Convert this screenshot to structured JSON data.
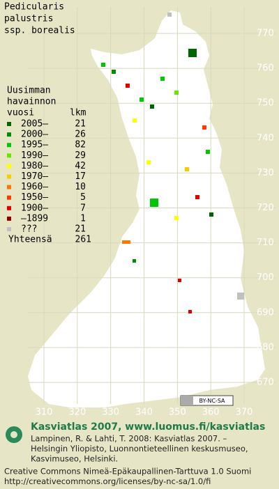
{
  "title": [
    "Pedicularis",
    "palustris",
    "ssp. borealis"
  ],
  "legend": {
    "header": [
      "Uusimman",
      "havainnon",
      "vuosi"
    ],
    "count_header": "lkm",
    "rows": [
      {
        "label": "2005–",
        "count": 21,
        "color": "#006400"
      },
      {
        "label": "2000–",
        "count": 26,
        "color": "#008c00"
      },
      {
        "label": "1995–",
        "count": 82,
        "color": "#00c800"
      },
      {
        "label": "1990–",
        "count": 29,
        "color": "#66e600"
      },
      {
        "label": "1980–",
        "count": 42,
        "color": "#ffff00"
      },
      {
        "label": "1970–",
        "count": 17,
        "color": "#ffc800"
      },
      {
        "label": "1960–",
        "count": 10,
        "color": "#ff7800"
      },
      {
        "label": "1950–",
        "count": 5,
        "color": "#ff3c00"
      },
      {
        "label": "1900–",
        "count": 7,
        "color": "#dc0000"
      },
      {
        "label": "–1899",
        "count": 1,
        "color": "#8c0000"
      },
      {
        "label": "???",
        "count": 21,
        "color": "#c0c0c0"
      }
    ],
    "total_label": "Yhteensä",
    "total": 261
  },
  "grid": {
    "x_labels": [
      310,
      320,
      330,
      340,
      350,
      360,
      370
    ],
    "y_labels": [
      770,
      760,
      750,
      740,
      730,
      720,
      710,
      700,
      690,
      680,
      670
    ]
  },
  "cc_badge": "BY-NC-SA",
  "footer": {
    "heading": "Kasviatlas 2007, www.luomus.fi/kasviatlas",
    "citation": [
      "Lampinen, R. & Lahti, T. 2008: Kasviatlas 2007. –",
      "Helsingin Yliopisto, Luonnontieteellinen keskusmuseo,",
      "Kasvimuseo, Helsinki."
    ],
    "license": [
      "Creative Commons Nimeä-Epäkaupallinen-Tarttuva 1.0 Suomi",
      "http://creativecommons.org/licenses/by-nc-sa/1.0/fi"
    ]
  }
}
